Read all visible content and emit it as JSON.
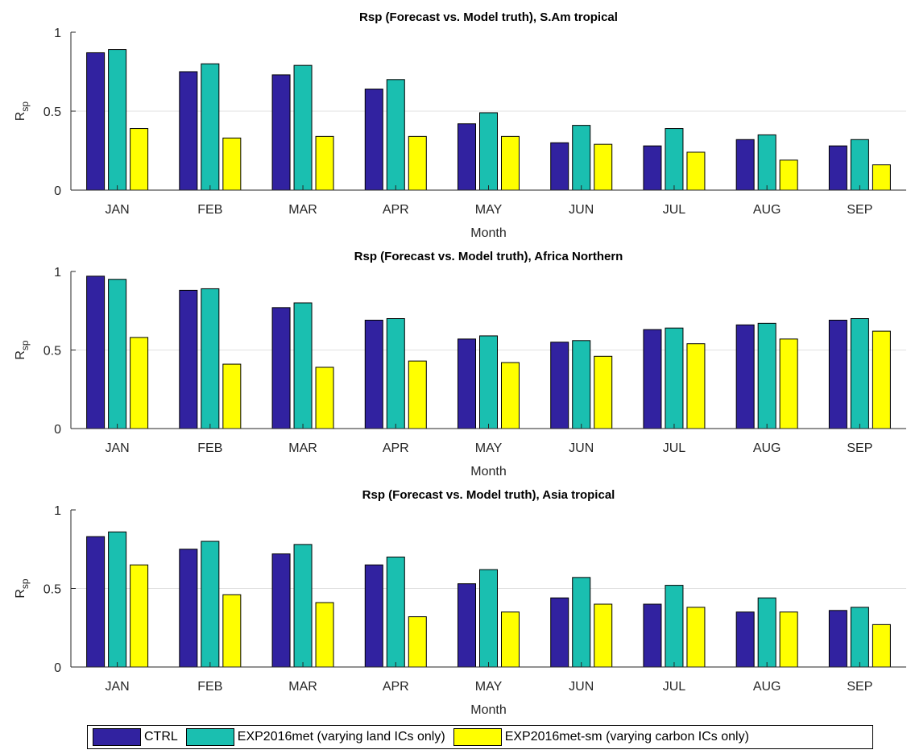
{
  "colors": {
    "CTRL": "#3122a0",
    "EXP2016met": "#1abfb0",
    "EXP2016met-sm": "#ffff00"
  },
  "legend": [
    {
      "label": "CTRL",
      "color": "#3122a0"
    },
    {
      "label": "EXP2016met (varying land ICs only)",
      "color": "#1abfb0"
    },
    {
      "label": "EXP2016met-sm (varying carbon ICs only)",
      "color": "#ffff00"
    }
  ],
  "chart_data": [
    {
      "type": "bar",
      "title": "Rsp (Forecast vs. Model truth), S.Am tropical",
      "xlabel": "Month",
      "ylabel": "R_sp",
      "ylim": [
        0,
        1
      ],
      "yticks": [
        "0",
        "0.5",
        "1"
      ],
      "grid": "horizontal",
      "categories": [
        "JAN",
        "FEB",
        "MAR",
        "APR",
        "MAY",
        "JUN",
        "JUL",
        "AUG",
        "SEP"
      ],
      "series": [
        {
          "name": "CTRL",
          "values": [
            0.87,
            0.75,
            0.73,
            0.64,
            0.42,
            0.3,
            0.28,
            0.32,
            0.28
          ]
        },
        {
          "name": "EXP2016met (varying land ICs only)",
          "values": [
            0.89,
            0.8,
            0.79,
            0.7,
            0.49,
            0.41,
            0.39,
            0.35,
            0.32
          ]
        },
        {
          "name": "EXP2016met-sm (varying carbon ICs only)",
          "values": [
            0.39,
            0.33,
            0.34,
            0.34,
            0.34,
            0.29,
            0.24,
            0.19,
            0.16
          ]
        }
      ]
    },
    {
      "type": "bar",
      "title": "Rsp (Forecast vs. Model truth), Africa Northern",
      "xlabel": "Month",
      "ylabel": "R_sp",
      "ylim": [
        0,
        1
      ],
      "yticks": [
        "0",
        "0.5",
        "1"
      ],
      "grid": "horizontal",
      "categories": [
        "JAN",
        "FEB",
        "MAR",
        "APR",
        "MAY",
        "JUN",
        "JUL",
        "AUG",
        "SEP"
      ],
      "series": [
        {
          "name": "CTRL",
          "values": [
            0.97,
            0.88,
            0.77,
            0.69,
            0.57,
            0.55,
            0.63,
            0.66,
            0.69
          ]
        },
        {
          "name": "EXP2016met (varying land ICs only)",
          "values": [
            0.95,
            0.89,
            0.8,
            0.7,
            0.59,
            0.56,
            0.64,
            0.67,
            0.7
          ]
        },
        {
          "name": "EXP2016met-sm (varying carbon ICs only)",
          "values": [
            0.58,
            0.41,
            0.39,
            0.43,
            0.42,
            0.46,
            0.54,
            0.57,
            0.62
          ]
        }
      ]
    },
    {
      "type": "bar",
      "title": "Rsp (Forecast vs. Model truth), Asia tropical",
      "xlabel": "Month",
      "ylabel": "R_sp",
      "ylim": [
        0,
        1
      ],
      "yticks": [
        "0",
        "0.5",
        "1"
      ],
      "grid": "horizontal",
      "categories": [
        "JAN",
        "FEB",
        "MAR",
        "APR",
        "MAY",
        "JUN",
        "JUL",
        "AUG",
        "SEP"
      ],
      "series": [
        {
          "name": "CTRL",
          "values": [
            0.83,
            0.75,
            0.72,
            0.65,
            0.53,
            0.44,
            0.4,
            0.35,
            0.36
          ]
        },
        {
          "name": "EXP2016met (varying land ICs only)",
          "values": [
            0.86,
            0.8,
            0.78,
            0.7,
            0.62,
            0.57,
            0.52,
            0.44,
            0.38
          ]
        },
        {
          "name": "EXP2016met-sm (varying carbon ICs only)",
          "values": [
            0.65,
            0.46,
            0.41,
            0.32,
            0.35,
            0.4,
            0.38,
            0.35,
            0.27
          ]
        }
      ]
    }
  ]
}
